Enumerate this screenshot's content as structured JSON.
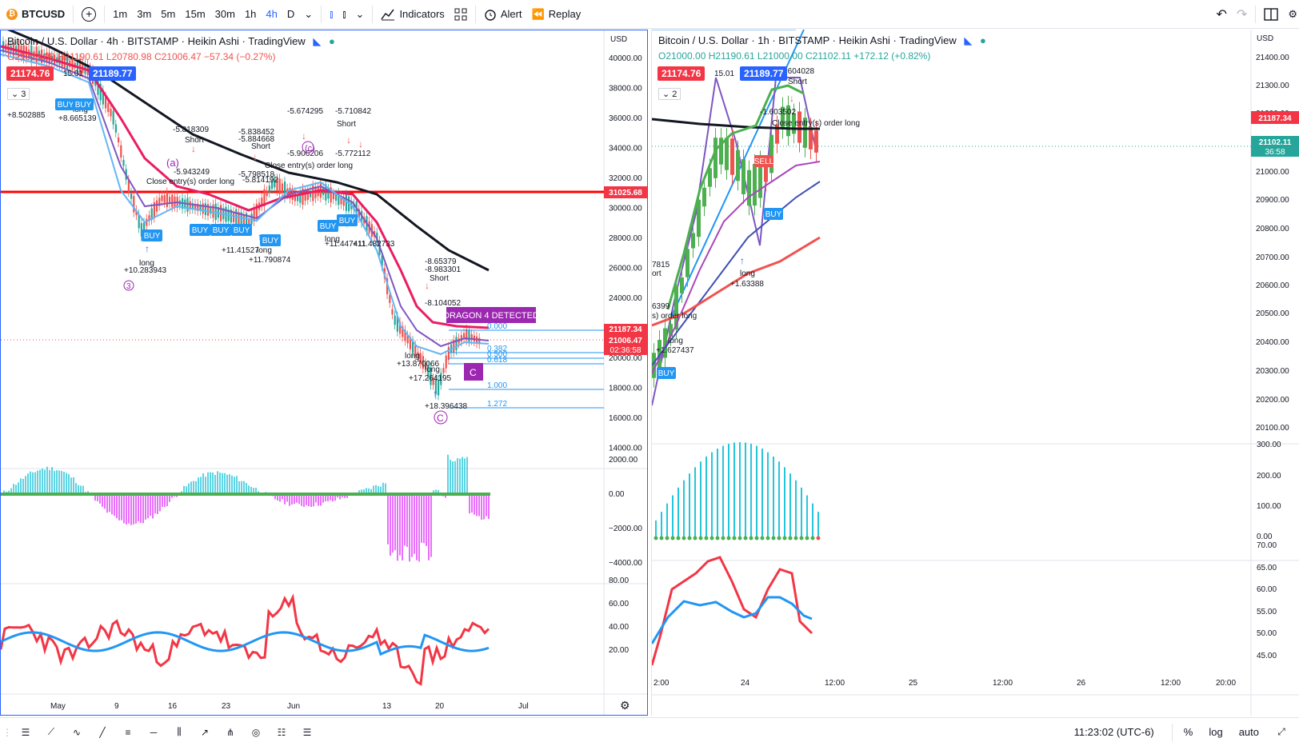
{
  "toolbar": {
    "symbol": "BTCUSD",
    "intervals": [
      "1m",
      "3m",
      "5m",
      "15m",
      "30m",
      "1h",
      "4h",
      "D"
    ],
    "active_interval": "4h",
    "indicators_label": "Indicators",
    "alert_label": "Alert",
    "replay_label": "Replay"
  },
  "left_chart": {
    "title": "Bitcoin / U.S. Dollar · 4h · BITSTAMP · Heikin Ashi · TradingView",
    "ohlc": {
      "o": "O21023.09",
      "h": "H21190.61",
      "l": "L20780.98",
      "c": "C21006.47",
      "chg": "−57.34 (−0.27%)"
    },
    "bid": "21174.76",
    "spread": "15.01",
    "ask": "21189.77",
    "indicator_count": "3",
    "currency": "USD",
    "price_axis": [
      "40000.00",
      "38000.00",
      "36000.00",
      "34000.00",
      "32000.00",
      "30000.00",
      "28000.00",
      "26000.00",
      "24000.00",
      "22000.00",
      "20000.00",
      "18000.00",
      "16000.00",
      "14000.00"
    ],
    "price_tags": {
      "level": "31025.68",
      "p1": "21187.34",
      "p2": "21006.47",
      "countdown": "02:36:58"
    },
    "macd_axis": [
      "2000.00",
      "0.00",
      "−2000.00",
      "−4000.00"
    ],
    "rsi_axis": [
      "80.00",
      "60.00",
      "40.00",
      "20.00"
    ],
    "time_axis": [
      "May",
      "9",
      "16",
      "23",
      "Jun",
      "13",
      "20",
      "Jul"
    ],
    "fib": [
      "0.000",
      "0.382",
      "0.500",
      "0.618",
      "1.000",
      "1.272"
    ],
    "dragon": "DRAGON 4 DETECTED",
    "wave_labels": [
      "(a)",
      "(c)",
      "3",
      "C",
      "C"
    ],
    "annotations": [
      {
        "t": "-5.818309"
      },
      {
        "t": "Short"
      },
      {
        "t": "-5.943249"
      },
      {
        "t": "-5.838452"
      },
      {
        "t": "-5.884668"
      },
      {
        "t": "Short"
      },
      {
        "t": "-5.798518"
      },
      {
        "t": "-5.814192"
      },
      {
        "t": "-5.674295"
      },
      {
        "t": "-5.710842"
      },
      {
        "t": "Short"
      },
      {
        "t": "-5.906206"
      },
      {
        "t": "-5.772112"
      },
      {
        "t": "Close entry(s) order long"
      },
      {
        "t": "Close entry(s) order long"
      },
      {
        "t": "long"
      },
      {
        "t": "+10.283943"
      },
      {
        "t": "long"
      },
      {
        "t": "+11.790874"
      },
      {
        "t": "+11.41527"
      },
      {
        "t": "long"
      },
      {
        "t": "+11.447411"
      },
      {
        "t": "+11.482733"
      },
      {
        "t": "-8.65379"
      },
      {
        "t": "-8.983301"
      },
      {
        "t": "Short"
      },
      {
        "t": "-8.104052"
      },
      {
        "t": "long"
      },
      {
        "t": "+13.870066"
      },
      {
        "t": "+17.264195"
      },
      {
        "t": "long"
      },
      {
        "t": "+18.396438"
      },
      {
        "t": "+8.502885"
      },
      {
        "t": "+8.665139"
      },
      {
        "t": "long"
      }
    ],
    "signals": [
      "BUY",
      "BUY",
      "BUY",
      "BUY",
      "BUY",
      "BUY",
      "BUY",
      "BUY",
      "BUY"
    ]
  },
  "right_chart": {
    "title": "Bitcoin / U.S. Dollar · 1h · BITSTAMP · Heikin Ashi · TradingView",
    "ohlc": {
      "o": "O21000.00",
      "h": "H21190.61",
      "l": "L21000.00",
      "c": "C21102.11",
      "chg": "+172.12 (+0.82%)"
    },
    "bid": "21174.76",
    "spread": "15.01",
    "ask": "21189.77",
    "indicator_count": "2",
    "currency": "USD",
    "price_axis": [
      "21400.00",
      "21300.00",
      "21200.00",
      "21000.00",
      "20900.00",
      "20800.00",
      "20700.00",
      "20600.00",
      "20500.00",
      "20400.00",
      "20300.00",
      "20200.00",
      "20100.00"
    ],
    "price_tags": {
      "p1": "21187.34",
      "p2": "21102.11",
      "countdown": "36:58"
    },
    "hist_axis": [
      "300.00",
      "200.00",
      "100.00",
      "0.00"
    ],
    "rsi_axis": [
      "70.00",
      "65.00",
      "60.00",
      "55.00",
      "50.00",
      "45.00"
    ],
    "time_axis": [
      "2:00",
      "24",
      "12:00",
      "25",
      "12:00",
      "26",
      "12:00",
      "20:00"
    ],
    "annotations": [
      {
        "t": "-1.604028"
      },
      {
        "t": "Short"
      },
      {
        "t": "-1.603502"
      },
      {
        "t": "Close entry(s) order long"
      },
      {
        "t": "long"
      },
      {
        "t": "+1.63388"
      },
      {
        "t": "s) order long"
      },
      {
        "t": "long"
      },
      {
        "t": "+1.627437"
      },
      {
        "t": "7815"
      },
      {
        "t": "ort"
      },
      {
        "t": "6399"
      }
    ],
    "signals": [
      "BUY",
      "BUY",
      "SELL"
    ]
  },
  "status": {
    "time": "11:23:02 (UTC-6)",
    "percent": "%",
    "log": "log",
    "auto": "auto"
  },
  "colors": {
    "accent": "#2962ff",
    "bull": "#26a69a",
    "bear": "#ef5350",
    "level": "#ff0000",
    "rsi": "#f23645",
    "rsi2": "#2196f3",
    "macd_pos": "#26c6da",
    "macd_neg": "#e040fb",
    "magenta": "#9c27b0"
  }
}
